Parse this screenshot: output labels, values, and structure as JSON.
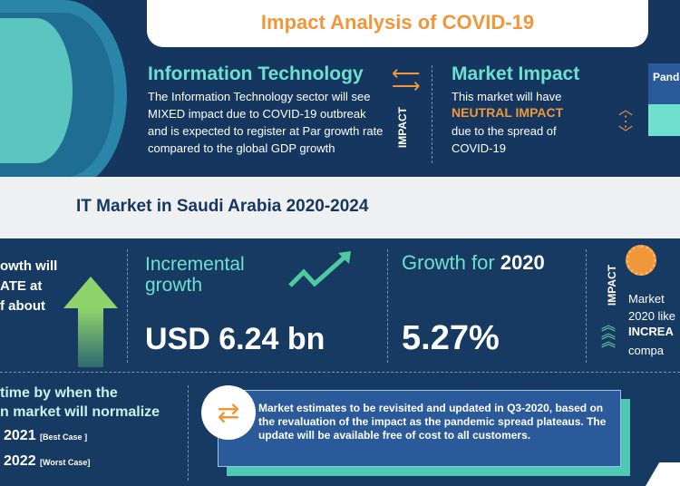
{
  "header": {
    "title": "Impact Analysis of COVID-19"
  },
  "sector": {
    "title": "Information Technology",
    "text": "The Information Technology sector will see MIXED  impact due to COVID-19 outbreak and is expected to register at Par growth rate compared to the global GDP growth"
  },
  "impact_label": "IMPACT",
  "market_impact": {
    "title": "Market Impact",
    "line1": "This market will have",
    "highlight": "NEUTRAL IMPACT",
    "line2": "due to the spread of COVID-19"
  },
  "pandemic_partial": "Pand",
  "band": {
    "title": "IT Market in Saudi Arabia 2020-2024"
  },
  "cagr": {
    "text": "owth will\nATE at\nf about"
  },
  "incremental": {
    "label1": "Incremental",
    "label2": "growth",
    "value": "USD 6.24 bn"
  },
  "growth2020": {
    "label": "Growth for",
    "year": "2020",
    "value": "5.27%"
  },
  "impact2": {
    "label": "IMPACT",
    "line1": "Market",
    "line2": "2020 like",
    "highlight": "INCREA",
    "line3": "compa"
  },
  "normalize": {
    "line1": "time by when the",
    "line2": "n market will normalize",
    "best_year": "2021",
    "best_label": "[Best Case ]",
    "worst_year": "2022",
    "worst_label": "[Worst Case]"
  },
  "note": {
    "text": "Market estimates to be revisited and updated in Q3-2020, based on the revaluation of the impact as the pandemic spread plateaus. The update will be available free of cost to all customers."
  }
}
